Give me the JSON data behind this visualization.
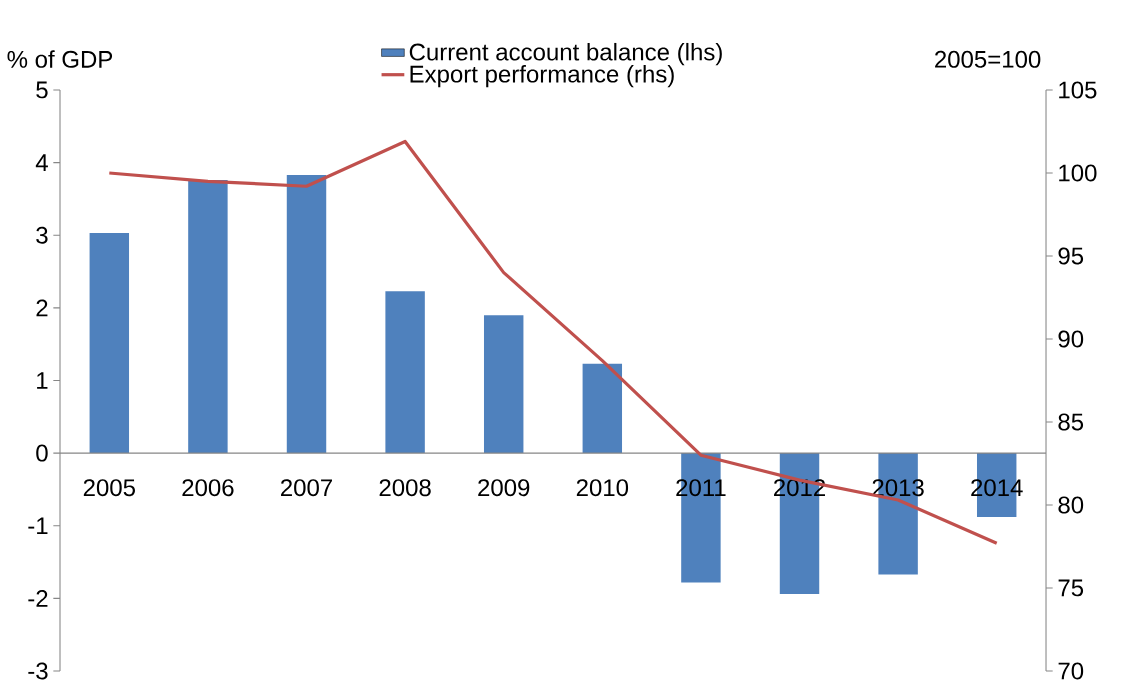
{
  "chart_data": {
    "type": "bar",
    "categories": [
      "2005",
      "2006",
      "2007",
      "2008",
      "2009",
      "2010",
      "2011",
      "2012",
      "2013",
      "2014"
    ],
    "series": [
      {
        "name": "Current account balance (lhs)",
        "color": "#4f81bd",
        "values": [
          3.03,
          3.76,
          3.83,
          2.23,
          1.9,
          1.23,
          -1.78,
          -1.94,
          -1.67,
          -0.88
        ]
      },
      {
        "name": "Export performance (rhs)",
        "type": "line",
        "axis": "y2",
        "color": "#c0504d",
        "values": [
          100.0,
          99.5,
          99.2,
          101.9,
          94.0,
          88.7,
          83.0,
          81.5,
          80.3,
          77.7
        ]
      }
    ],
    "ylabel": "% of GDP",
    "y2label": "2005=100",
    "ylim": [
      -3,
      5
    ],
    "yticks": [
      -3,
      -2,
      -1,
      0,
      1,
      2,
      3,
      4,
      5
    ],
    "y2lim": [
      70,
      105
    ],
    "y2ticks": [
      70,
      75,
      80,
      85,
      90,
      95,
      100,
      105
    ],
    "legend": "top"
  }
}
